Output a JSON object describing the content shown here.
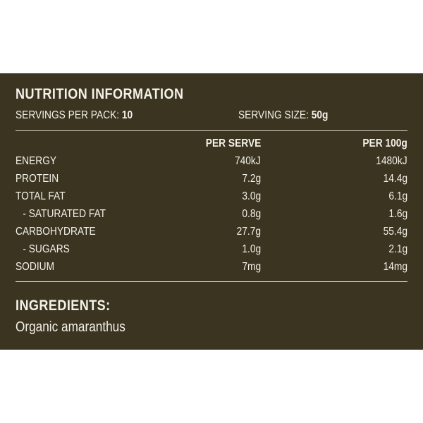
{
  "title": "NUTRITION INFORMATION",
  "servings": {
    "per_pack_label": "SERVINGS PER PACK:",
    "per_pack_value": "10",
    "size_label": "SERVING SIZE:",
    "size_value": "50g"
  },
  "columns": {
    "label": "",
    "per_serve": "PER SERVE",
    "per_100g": "PER 100g"
  },
  "rows": [
    {
      "label": "ENERGY",
      "per_serve": "740kJ",
      "per_100g": "1480kJ"
    },
    {
      "label": "PROTEIN",
      "per_serve": "7.2g",
      "per_100g": "14.4g"
    },
    {
      "label": "TOTAL FAT",
      "per_serve": "3.0g",
      "per_100g": "6.1g"
    },
    {
      "label": "- SATURATED FAT",
      "per_serve": "0.8g",
      "per_100g": "1.6g"
    },
    {
      "label": "CARBOHYDRATE",
      "per_serve": "27.7g",
      "per_100g": "55.4g"
    },
    {
      "label": "- SUGARS",
      "per_serve": "1.0g",
      "per_100g": "2.1g"
    },
    {
      "label": "SODIUM",
      "per_serve": "7mg",
      "per_100g": "14mg"
    }
  ],
  "ingredients": {
    "title": "INGREDIENTS:",
    "text": "Organic amaranthus"
  },
  "colors": {
    "panel_background": "#3a3421",
    "text": "#f4f1e8",
    "rule": "#d9d4c3"
  }
}
